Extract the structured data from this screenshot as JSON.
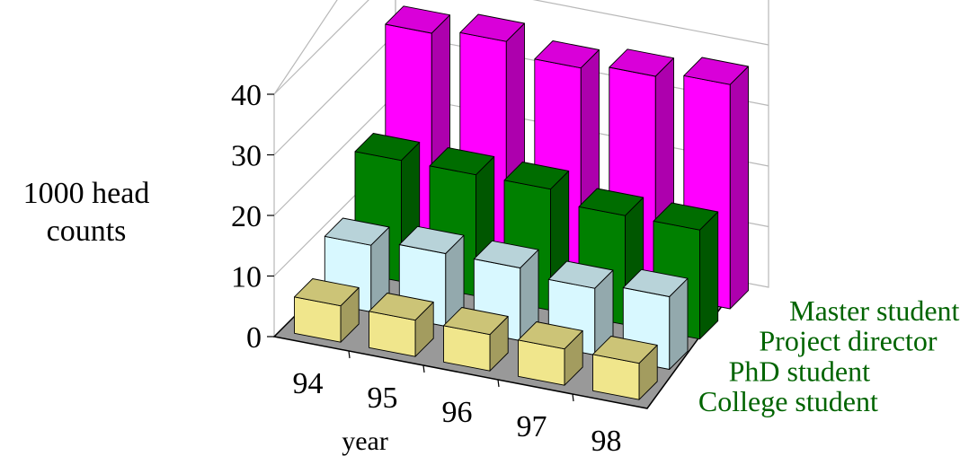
{
  "chart_data": {
    "type": "bar",
    "subtype": "3d-grouped-depth",
    "categories": [
      "94",
      "95",
      "96",
      "97",
      "98"
    ],
    "series": [
      {
        "name": "College student",
        "values": [
          6,
          6,
          6,
          6,
          6
        ],
        "color": "#F0E68C"
      },
      {
        "name": "PhD student",
        "values": [
          11,
          12,
          12,
          11,
          12
        ],
        "color": "#D8F8FF"
      },
      {
        "name": "Project director",
        "values": [
          20,
          20,
          20,
          18,
          18
        ],
        "color": "#008000"
      },
      {
        "name": "Master student",
        "values": [
          36,
          37,
          35,
          36,
          37
        ],
        "color": "#FF00FF"
      }
    ],
    "yticks": [
      "0",
      "10",
      "20",
      "30",
      "40"
    ],
    "ylim": [
      0,
      50
    ],
    "ylabel": [
      "1000 head",
      "counts"
    ],
    "xlabel": "year",
    "series_label_color": "#006400",
    "floor_color": "#999999",
    "grid": true
  }
}
